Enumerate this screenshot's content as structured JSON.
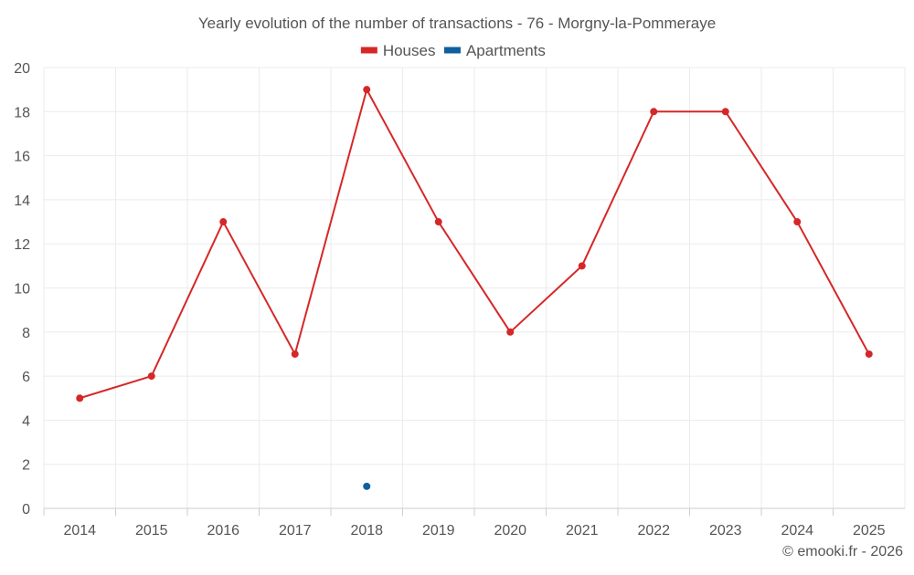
{
  "chart_data": {
    "type": "line",
    "title": "Yearly evolution of the number of transactions - 76 - Morgny-la-Pommeraye",
    "categories": [
      "2014",
      "2015",
      "2016",
      "2017",
      "2018",
      "2019",
      "2020",
      "2021",
      "2022",
      "2023",
      "2024",
      "2025"
    ],
    "series": [
      {
        "name": "Houses",
        "color": "#d62728",
        "values": [
          5,
          6,
          13,
          7,
          19,
          13,
          8,
          11,
          18,
          18,
          13,
          7
        ]
      },
      {
        "name": "Apartments",
        "color": "#0f5f9c",
        "values": [
          null,
          null,
          null,
          null,
          1,
          null,
          null,
          null,
          null,
          null,
          null,
          null
        ]
      }
    ],
    "ylim": [
      0,
      20
    ],
    "yticks": [
      0,
      2,
      4,
      6,
      8,
      10,
      12,
      14,
      16,
      18,
      20
    ],
    "grid": true,
    "legend_position": "top-center"
  },
  "footer": {
    "credit": "© emooki.fr - 2026"
  },
  "colors": {
    "grid": "#ebebeb",
    "axis_text": "#555555",
    "title_text": "#555555"
  }
}
